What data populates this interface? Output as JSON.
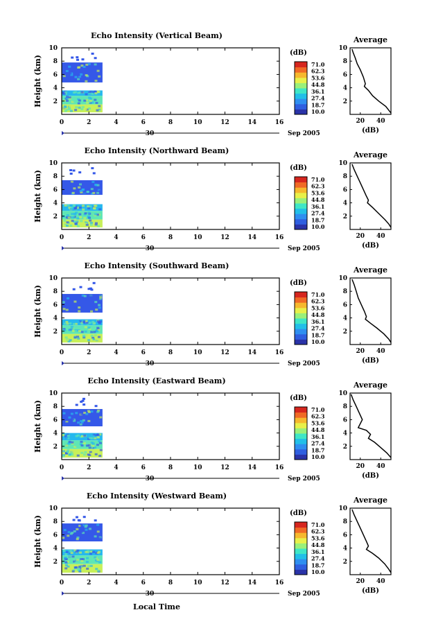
{
  "figure": {
    "x_axis_label": "Local Time",
    "colorbar_unit": "(dB)",
    "colorbar_ticks": [
      "71.0",
      "62.3",
      "53.6",
      "44.8",
      "36.1",
      "27.4",
      "18.7",
      "10.0"
    ],
    "colorbar_colors": [
      "#2a33a8",
      "#2f5fe0",
      "#2f8ff0",
      "#22bfe8",
      "#3fe6c6",
      "#9af07a",
      "#e8f04a",
      "#f6b82e",
      "#f06a26",
      "#d6261e"
    ],
    "date_left": "30",
    "date_right": "Sep 2005",
    "avg_title": "Average",
    "avg_xlabel": "(dB)"
  },
  "chart_data": [
    {
      "type": "heatmap",
      "title": "Echo Intensity (Vertical Beam)",
      "ylabel": "Height (km)",
      "x_ticks": [
        "0",
        "2",
        "4",
        "6",
        "8",
        "10",
        "12",
        "14",
        "16"
      ],
      "y_ticks": [
        "2",
        "4",
        "6",
        "8",
        "10"
      ],
      "xlim": [
        0,
        16
      ],
      "ylim": [
        0,
        10
      ],
      "data_time_range": [
        0,
        3
      ],
      "layers": [
        {
          "y0": 0.3,
          "y1": 1.5,
          "level": "yellow-green"
        },
        {
          "y0": 1.5,
          "y1": 2.8,
          "level": "cyan-green"
        },
        {
          "y0": 2.8,
          "y1": 3.6,
          "level": "cyan"
        },
        {
          "y0": 4.8,
          "y1": 7.8,
          "level": "blue"
        }
      ],
      "average_profile": {
        "x_ticks": [
          "20",
          "40"
        ],
        "y_ticks": [
          "2",
          "4",
          "6",
          "8",
          "10"
        ],
        "xlim": [
          10,
          50
        ],
        "ylim": [
          0,
          10
        ],
        "x": [
          12,
          13,
          15,
          17,
          20,
          23,
          25,
          24,
          28,
          32,
          38,
          45,
          48,
          50
        ],
        "y": [
          9.8,
          9.3,
          8.5,
          7.6,
          6.7,
          5.6,
          4.6,
          4.2,
          3.6,
          2.8,
          2.0,
          1.2,
          0.6,
          0.2
        ]
      }
    },
    {
      "type": "heatmap",
      "title": "Echo Intensity (Northward Beam)",
      "ylabel": "Height (km)",
      "x_ticks": [
        "0",
        "2",
        "4",
        "6",
        "8",
        "10",
        "12",
        "14",
        "16"
      ],
      "y_ticks": [
        "2",
        "4",
        "6",
        "8",
        "10"
      ],
      "xlim": [
        0,
        16
      ],
      "ylim": [
        0,
        10
      ],
      "data_time_range": [
        0,
        3
      ],
      "layers": [
        {
          "y0": 0.3,
          "y1": 1.5,
          "level": "yellow-green"
        },
        {
          "y0": 1.5,
          "y1": 2.8,
          "level": "cyan-green"
        },
        {
          "y0": 2.8,
          "y1": 3.8,
          "level": "cyan"
        },
        {
          "y0": 5.2,
          "y1": 7.4,
          "level": "blue"
        }
      ],
      "average_profile": {
        "x_ticks": [
          "20",
          "40"
        ],
        "y_ticks": [
          "2",
          "4",
          "6",
          "8",
          "10"
        ],
        "xlim": [
          10,
          50
        ],
        "ylim": [
          0,
          10
        ],
        "x": [
          12,
          14,
          17,
          20,
          23,
          26,
          28,
          27,
          32,
          38,
          44,
          48,
          50
        ],
        "y": [
          9.8,
          9.0,
          8.0,
          7.0,
          6.0,
          5.0,
          4.4,
          4.0,
          3.3,
          2.4,
          1.5,
          0.8,
          0.3
        ]
      }
    },
    {
      "type": "heatmap",
      "title": "Echo Intensity (Southward Beam)",
      "ylabel": "Height (km)",
      "x_ticks": [
        "0",
        "2",
        "4",
        "6",
        "8",
        "10",
        "12",
        "14",
        "16"
      ],
      "y_ticks": [
        "2",
        "4",
        "6",
        "8",
        "10"
      ],
      "xlim": [
        0,
        16
      ],
      "ylim": [
        0,
        10
      ],
      "data_time_range": [
        0,
        3
      ],
      "layers": [
        {
          "y0": 0.3,
          "y1": 1.6,
          "level": "yellow-green"
        },
        {
          "y0": 1.6,
          "y1": 2.9,
          "level": "cyan-green"
        },
        {
          "y0": 2.9,
          "y1": 3.8,
          "level": "cyan"
        },
        {
          "y0": 4.8,
          "y1": 7.6,
          "level": "blue"
        }
      ],
      "average_profile": {
        "x_ticks": [
          "20",
          "40"
        ],
        "y_ticks": [
          "2",
          "4",
          "6",
          "8",
          "10"
        ],
        "xlim": [
          10,
          50
        ],
        "ylim": [
          0,
          10
        ],
        "x": [
          12,
          14,
          16,
          18,
          21,
          24,
          26,
          25,
          30,
          36,
          43,
          48,
          50
        ],
        "y": [
          9.8,
          9.0,
          8.0,
          7.0,
          6.0,
          5.0,
          4.2,
          3.8,
          3.2,
          2.5,
          1.6,
          0.8,
          0.3
        ]
      }
    },
    {
      "type": "heatmap",
      "title": "Echo Intensity (Eastward Beam)",
      "ylabel": "Height (km)",
      "x_ticks": [
        "0",
        "2",
        "4",
        "6",
        "8",
        "10",
        "12",
        "14",
        "16"
      ],
      "y_ticks": [
        "2",
        "4",
        "6",
        "8",
        "10"
      ],
      "xlim": [
        0,
        16
      ],
      "ylim": [
        0,
        10
      ],
      "data_time_range": [
        0,
        3
      ],
      "layers": [
        {
          "y0": 0.3,
          "y1": 1.6,
          "level": "yellow-green"
        },
        {
          "y0": 1.6,
          "y1": 2.9,
          "level": "cyan-green"
        },
        {
          "y0": 2.9,
          "y1": 4.0,
          "level": "cyan"
        },
        {
          "y0": 5.0,
          "y1": 7.6,
          "level": "blue"
        }
      ],
      "average_profile": {
        "x_ticks": [
          "20",
          "40"
        ],
        "y_ticks": [
          "2",
          "4",
          "6",
          "8",
          "10"
        ],
        "xlim": [
          10,
          50
        ],
        "ylim": [
          0,
          10
        ],
        "x": [
          11,
          13,
          16,
          19,
          22,
          18,
          26,
          30,
          28,
          34,
          40,
          46,
          50
        ],
        "y": [
          9.8,
          9.0,
          8.0,
          7.0,
          6.0,
          4.8,
          4.4,
          3.8,
          3.2,
          2.6,
          1.8,
          1.0,
          0.3
        ]
      }
    },
    {
      "type": "heatmap",
      "title": "Echo Intensity (Westward Beam)",
      "ylabel": "Height (km)",
      "x_ticks": [
        "0",
        "2",
        "4",
        "6",
        "8",
        "10",
        "12",
        "14",
        "16"
      ],
      "y_ticks": [
        "2",
        "4",
        "6",
        "8",
        "10"
      ],
      "xlim": [
        0,
        16
      ],
      "ylim": [
        0,
        10
      ],
      "data_time_range": [
        0,
        3
      ],
      "layers": [
        {
          "y0": 0.3,
          "y1": 1.6,
          "level": "yellow-green"
        },
        {
          "y0": 1.6,
          "y1": 2.9,
          "level": "cyan-green"
        },
        {
          "y0": 2.9,
          "y1": 3.8,
          "level": "cyan"
        },
        {
          "y0": 5.0,
          "y1": 7.7,
          "level": "blue"
        }
      ],
      "average_profile": {
        "x_ticks": [
          "20",
          "40"
        ],
        "y_ticks": [
          "2",
          "4",
          "6",
          "8",
          "10"
        ],
        "xlim": [
          10,
          50
        ],
        "ylim": [
          0,
          10
        ],
        "x": [
          12,
          14,
          17,
          20,
          23,
          26,
          28,
          26,
          32,
          38,
          44,
          48,
          50
        ],
        "y": [
          9.8,
          9.0,
          8.0,
          7.0,
          6.0,
          5.0,
          4.3,
          3.8,
          3.2,
          2.5,
          1.6,
          0.8,
          0.3
        ]
      }
    }
  ]
}
